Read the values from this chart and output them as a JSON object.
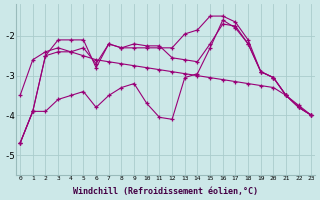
{
  "xlabel": "Windchill (Refroidissement éolien,°C)",
  "background_color": "#cce8e8",
  "grid_color": "#aacccc",
  "line_color": "#990077",
  "x_ticks": [
    0,
    1,
    2,
    3,
    4,
    5,
    6,
    7,
    8,
    9,
    10,
    11,
    12,
    13,
    14,
    15,
    16,
    17,
    18,
    19,
    20,
    21,
    22,
    23
  ],
  "y_ticks": [
    -2,
    -3,
    -4,
    -5
  ],
  "ylim": [
    -5.5,
    -1.2
  ],
  "xlim": [
    -0.3,
    23.3
  ],
  "series": [
    {
      "x": [
        0,
        1,
        2,
        3,
        4,
        5,
        6,
        7,
        8,
        9,
        10,
        11,
        12,
        13,
        14,
        15,
        16,
        17,
        18,
        19,
        20,
        21,
        22,
        23
      ],
      "y": [
        -4.7,
        -3.9,
        -2.5,
        -2.1,
        -2.1,
        -2.1,
        -2.8,
        -2.2,
        -2.3,
        -2.3,
        -2.3,
        -2.3,
        -2.3,
        -1.95,
        -1.85,
        -1.5,
        -1.5,
        -1.65,
        -2.1,
        -2.9,
        -3.05,
        -3.5,
        -3.8,
        -4.0
      ]
    },
    {
      "x": [
        0,
        1,
        2,
        3,
        4,
        5,
        6,
        7,
        8,
        9,
        10,
        11,
        12,
        13,
        14,
        15,
        16,
        17,
        18,
        19,
        20,
        21,
        22,
        23
      ],
      "y": [
        -4.7,
        -3.9,
        -2.5,
        -2.4,
        -2.4,
        -2.3,
        -2.7,
        -2.2,
        -2.3,
        -2.2,
        -2.25,
        -2.25,
        -2.55,
        -2.6,
        -2.65,
        -2.2,
        -1.7,
        -1.75,
        -2.2,
        -2.9,
        -3.05,
        -3.5,
        -3.8,
        -4.0
      ]
    },
    {
      "x": [
        0,
        1,
        2,
        3,
        4,
        5,
        6,
        7,
        8,
        9,
        10,
        11,
        12,
        13,
        14,
        15,
        16,
        17,
        18,
        19,
        20,
        21,
        22,
        23
      ],
      "y": [
        -4.7,
        -3.9,
        -3.9,
        -3.6,
        -3.5,
        -3.4,
        -3.8,
        -3.5,
        -3.3,
        -3.2,
        -3.7,
        -4.05,
        -4.1,
        -3.05,
        -2.95,
        -2.3,
        -1.6,
        -1.8,
        -2.2,
        -2.9,
        -3.05,
        -3.5,
        -3.8,
        -4.0
      ]
    },
    {
      "x": [
        0,
        1,
        2,
        3,
        4,
        5,
        6,
        7,
        8,
        9,
        10,
        11,
        12,
        13,
        14,
        15,
        16,
        17,
        18,
        19,
        20,
        21,
        22,
        23
      ],
      "y": [
        -3.5,
        -2.6,
        -2.4,
        -2.3,
        -2.4,
        -2.5,
        -2.6,
        -2.65,
        -2.7,
        -2.75,
        -2.8,
        -2.85,
        -2.9,
        -2.95,
        -3.0,
        -3.05,
        -3.1,
        -3.15,
        -3.2,
        -3.25,
        -3.3,
        -3.5,
        -3.75,
        -4.0
      ]
    }
  ]
}
